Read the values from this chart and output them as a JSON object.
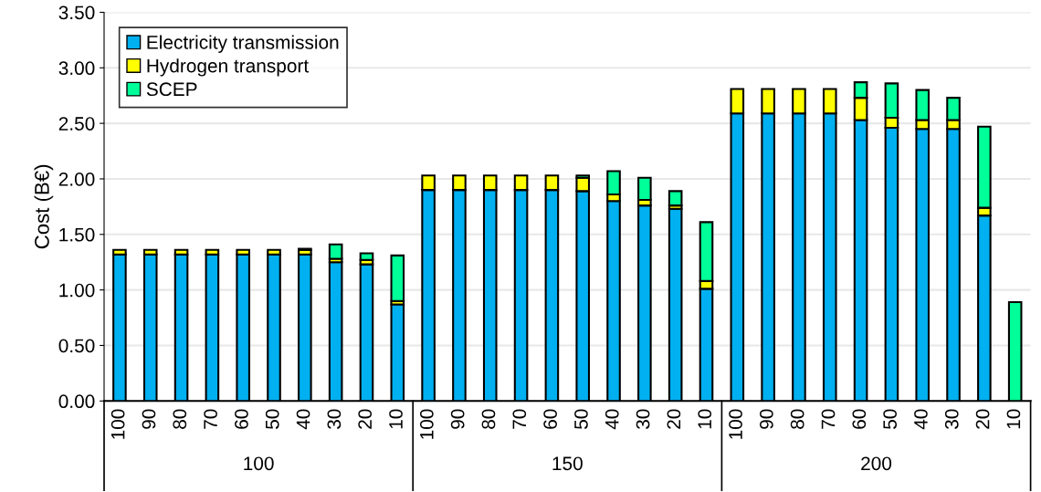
{
  "chart_data": {
    "type": "bar",
    "stacked": true,
    "ylabel": "Cost (B€)",
    "categories": [
      "100",
      "90",
      "80",
      "70",
      "60",
      "50",
      "40",
      "30",
      "20",
      "10",
      "100",
      "90",
      "80",
      "70",
      "60",
      "50",
      "40",
      "30",
      "20",
      "10",
      "100",
      "90",
      "80",
      "70",
      "60",
      "50",
      "40",
      "30",
      "20",
      "10"
    ],
    "series": [
      {
        "name": "Electricity transmission",
        "color": "#00b0f0",
        "values": [
          1.32,
          1.32,
          1.32,
          1.32,
          1.32,
          1.32,
          1.32,
          1.25,
          1.23,
          0.87,
          1.9,
          1.9,
          1.9,
          1.9,
          1.9,
          1.89,
          1.8,
          1.76,
          1.73,
          1.01,
          2.59,
          2.59,
          2.59,
          2.59,
          2.53,
          2.46,
          2.45,
          2.45,
          1.67,
          0
        ]
      },
      {
        "name": "Hydrogen transport",
        "color": "#ffff00",
        "values": [
          0.04,
          0.04,
          0.04,
          0.04,
          0.04,
          0.04,
          0.04,
          0.03,
          0.04,
          0.03,
          0.13,
          0.13,
          0.13,
          0.13,
          0.13,
          0.12,
          0.06,
          0.05,
          0.03,
          0.07,
          0.22,
          0.22,
          0.22,
          0.22,
          0.2,
          0.09,
          0.08,
          0.08,
          0.07,
          0
        ]
      },
      {
        "name": "SCEP",
        "color": "#00ff99",
        "values": [
          0,
          0,
          0,
          0,
          0,
          0,
          0.01,
          0.13,
          0.06,
          0.41,
          0,
          0,
          0,
          0,
          0,
          0.02,
          0.21,
          0.2,
          0.13,
          0.53,
          0,
          0,
          0,
          0,
          0.14,
          0.31,
          0.27,
          0.2,
          0.73,
          0.89
        ]
      }
    ],
    "ylim": [
      0,
      3.5
    ],
    "yticks": [
      {
        "value": 0,
        "label": "0.00"
      },
      {
        "value": 0.5,
        "label": "0.50"
      },
      {
        "value": 1,
        "label": "1.00"
      },
      {
        "value": 1.5,
        "label": "1.50"
      },
      {
        "value": 2,
        "label": "2.00"
      },
      {
        "value": 2.5,
        "label": "2.50"
      },
      {
        "value": 3,
        "label": "3.00"
      },
      {
        "value": 3.5,
        "label": "3.50"
      }
    ],
    "grid": "y",
    "legend": "top left",
    "annotations": [
      "100",
      "150",
      "200"
    ]
  }
}
